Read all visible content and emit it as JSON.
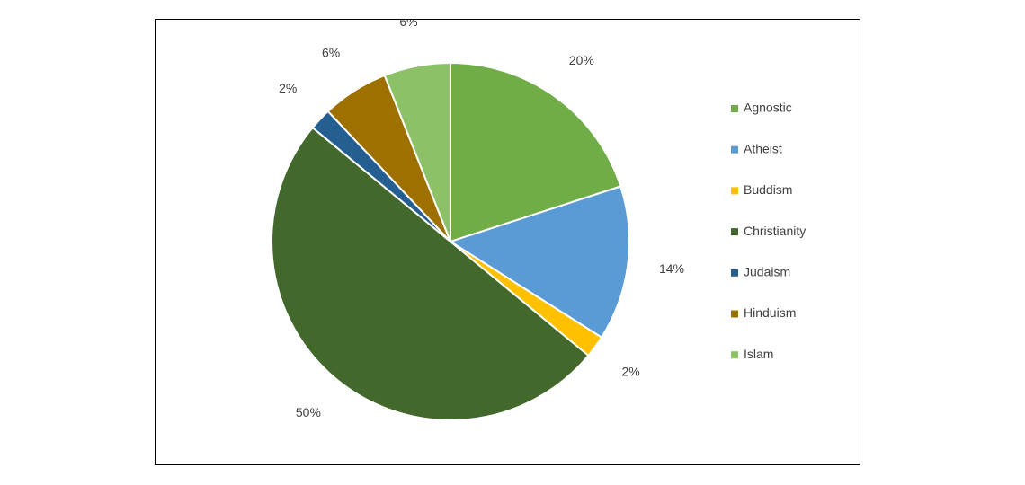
{
  "chart_data": {
    "type": "pie",
    "title": "",
    "legend_position": "right",
    "start_angle_deg": 0,
    "direction": "clockwise",
    "slice_border_color": "#ffffff",
    "slices": [
      {
        "label": "Agnostic",
        "value": 20,
        "value_label": "20%",
        "color": "#70ad47"
      },
      {
        "label": "Atheist",
        "value": 14,
        "value_label": "14%",
        "color": "#5b9bd5"
      },
      {
        "label": "Buddism",
        "value": 2,
        "value_label": "2%",
        "color": "#ffc000"
      },
      {
        "label": "Christianity",
        "value": 50,
        "value_label": "50%",
        "color": "#43682b"
      },
      {
        "label": "Judaism",
        "value": 2,
        "value_label": "2%",
        "color": "#255e91"
      },
      {
        "label": "Hinduism",
        "value": 6,
        "value_label": "6%",
        "color": "#9e7000"
      },
      {
        "label": "Islam",
        "value": 6,
        "value_label": "6%",
        "color": "#8cc168"
      }
    ]
  }
}
